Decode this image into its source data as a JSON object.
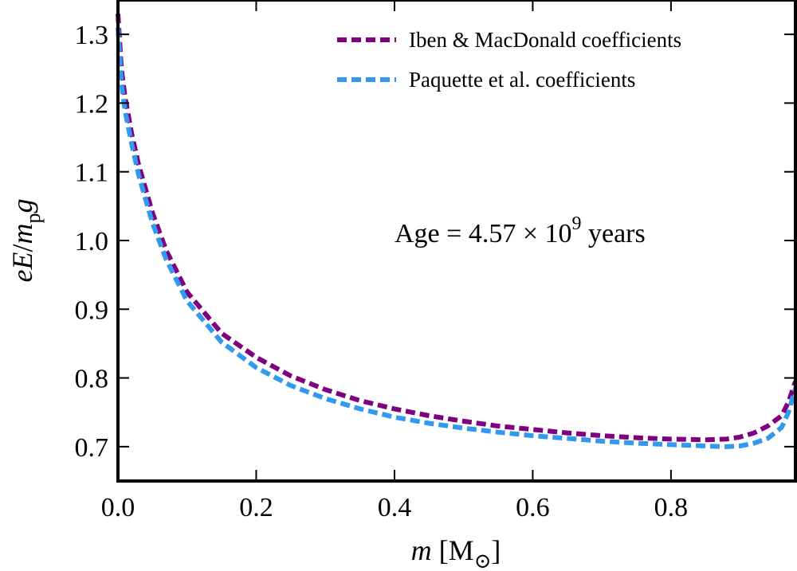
{
  "chart_data": {
    "type": "line",
    "title": "",
    "xlabel": {
      "symbol": "m",
      "unit": "M",
      "unit_sub": "⊙"
    },
    "ylabel": {
      "e": "e",
      "E": "E",
      "slash": "/",
      "m": "m",
      "p": "p",
      "g": "g"
    },
    "xlim": [
      0.0,
      0.98
    ],
    "ylim": [
      0.65,
      1.35
    ],
    "xticks": [
      0.0,
      0.2,
      0.4,
      0.6,
      0.8
    ],
    "xtick_labels": [
      "0.0",
      "0.2",
      "0.4",
      "0.6",
      "0.8"
    ],
    "yticks": [
      0.7,
      0.8,
      0.9,
      1.0,
      1.1,
      1.2,
      1.3
    ],
    "ytick_labels": [
      "0.7",
      "0.8",
      "0.9",
      "1.0",
      "1.1",
      "1.2",
      "1.3"
    ],
    "grid": false,
    "legend_position": "top-right",
    "annotation": {
      "prefix": "Age = 4.57 × 10",
      "exponent": "9",
      "suffix": " years"
    },
    "series": [
      {
        "name": "Iben & MacDonald coefficients",
        "color": "#800080",
        "style": "dashed",
        "x": [
          0.0,
          0.005,
          0.01,
          0.02,
          0.03,
          0.05,
          0.07,
          0.1,
          0.15,
          0.2,
          0.25,
          0.3,
          0.35,
          0.4,
          0.45,
          0.5,
          0.55,
          0.6,
          0.65,
          0.7,
          0.75,
          0.8,
          0.85,
          0.88,
          0.9,
          0.92,
          0.94,
          0.96,
          0.97,
          0.98
        ],
        "y": [
          1.33,
          1.25,
          1.21,
          1.155,
          1.11,
          1.04,
          0.985,
          0.925,
          0.865,
          0.83,
          0.803,
          0.783,
          0.767,
          0.755,
          0.745,
          0.737,
          0.73,
          0.725,
          0.72,
          0.716,
          0.713,
          0.711,
          0.71,
          0.711,
          0.714,
          0.72,
          0.73,
          0.745,
          0.765,
          0.795
        ]
      },
      {
        "name": "Paquette et al. coefficients",
        "color": "#3399ee",
        "style": "dashed",
        "x": [
          0.0,
          0.005,
          0.01,
          0.02,
          0.03,
          0.05,
          0.07,
          0.1,
          0.15,
          0.2,
          0.25,
          0.3,
          0.35,
          0.4,
          0.45,
          0.5,
          0.55,
          0.6,
          0.65,
          0.7,
          0.75,
          0.8,
          0.85,
          0.88,
          0.9,
          0.92,
          0.94,
          0.96,
          0.97,
          0.98
        ],
        "y": [
          1.31,
          1.23,
          1.19,
          1.14,
          1.095,
          1.025,
          0.972,
          0.912,
          0.852,
          0.815,
          0.789,
          0.77,
          0.755,
          0.743,
          0.734,
          0.727,
          0.721,
          0.716,
          0.712,
          0.708,
          0.705,
          0.703,
          0.701,
          0.7,
          0.701,
          0.705,
          0.712,
          0.728,
          0.75,
          0.785
        ]
      }
    ]
  }
}
